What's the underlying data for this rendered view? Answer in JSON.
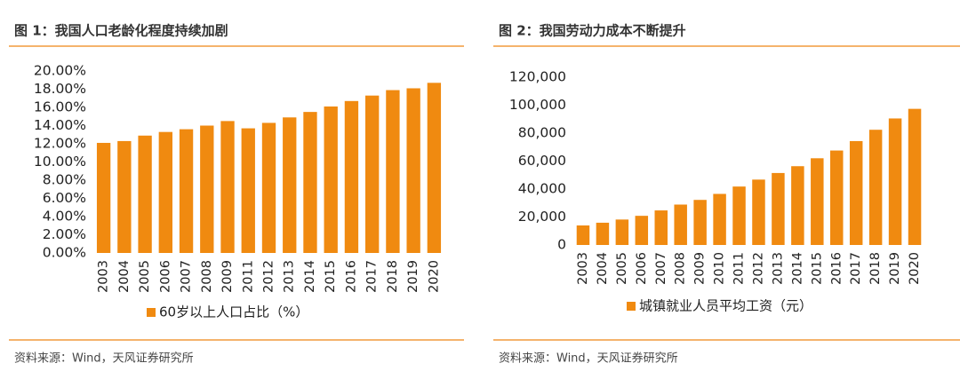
{
  "chart_data": [
    {
      "type": "bar",
      "title": "图 1：我国人口老龄化程度持续加剧",
      "categories": [
        "2003",
        "2004",
        "2005",
        "2006",
        "2007",
        "2008",
        "2009",
        "2011",
        "2012",
        "2013",
        "2014",
        "2015",
        "2016",
        "2017",
        "2018",
        "2019",
        "2020"
      ],
      "series": [
        {
          "name": "60岁以上人口占比（%）",
          "color": "#f08a10",
          "values": [
            12.1,
            12.3,
            12.9,
            13.3,
            13.6,
            14.0,
            14.5,
            13.7,
            14.3,
            14.9,
            15.5,
            16.1,
            16.7,
            17.3,
            17.9,
            18.1,
            18.7
          ]
        }
      ],
      "ylim": [
        0,
        20
      ],
      "yticks": [
        {
          "value": 0,
          "label": "0.00%"
        },
        {
          "value": 2,
          "label": "2.00%"
        },
        {
          "value": 4,
          "label": "4.00%"
        },
        {
          "value": 6,
          "label": "6.00%"
        },
        {
          "value": 8,
          "label": "8.00%"
        },
        {
          "value": 10,
          "label": "10.00%"
        },
        {
          "value": 12,
          "label": "12.00%"
        },
        {
          "value": 14,
          "label": "14.00%"
        },
        {
          "value": 16,
          "label": "16.00%"
        },
        {
          "value": 18,
          "label": "18.00%"
        },
        {
          "value": 20,
          "label": "20.00%"
        }
      ],
      "source": "资料来源：Wind，天风证券研究所"
    },
    {
      "type": "bar",
      "title": "图 2：我国劳动力成本不断提升",
      "categories": [
        "2003",
        "2004",
        "2005",
        "2006",
        "2007",
        "2008",
        "2009",
        "2010",
        "2011",
        "2012",
        "2013",
        "2014",
        "2015",
        "2016",
        "2017",
        "2018",
        "2019",
        "2020"
      ],
      "series": [
        {
          "name": "城镇就业人员平均工资（元）",
          "color": "#f08a10",
          "values": [
            13969,
            15920,
            18200,
            20856,
            24721,
            28898,
            32244,
            36539,
            41799,
            46769,
            51483,
            56360,
            62029,
            67569,
            74318,
            82413,
            90501,
            97379
          ]
        }
      ],
      "ylim": [
        0,
        120000
      ],
      "yticks": [
        0,
        {
          "value": 20000,
          "label": "20,000"
        },
        {
          "value": 40000,
          "label": "40,000"
        },
        {
          "value": 60000,
          "label": "60,000"
        },
        {
          "value": 80000,
          "label": "80,000"
        },
        {
          "value": 100000,
          "label": "100,000"
        },
        {
          "value": 120000,
          "label": "120,000"
        }
      ],
      "source": "资料来源：Wind，天风证券研究所"
    }
  ]
}
